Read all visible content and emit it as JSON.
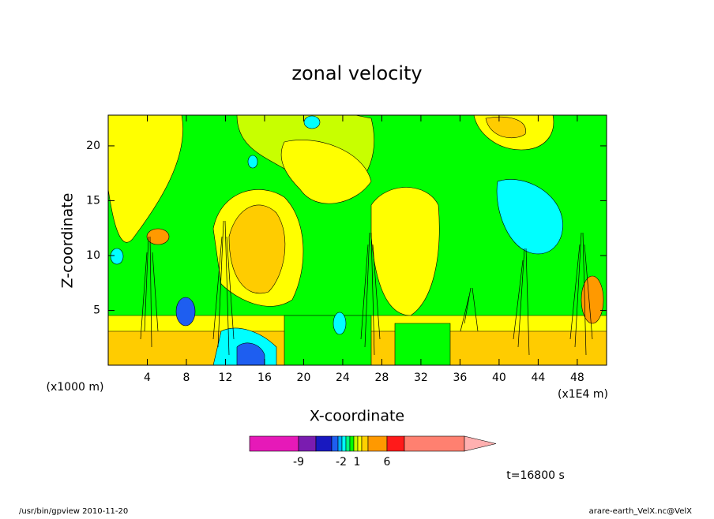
{
  "chart_data": {
    "type": "contour",
    "title": "zonal velocity",
    "x_label": "X-coordinate",
    "y_label": "Z-coordinate",
    "x_unit": "(x1E4 m)",
    "y_unit": "(x1000 m)",
    "xlim": [
      0,
      51
    ],
    "xticks": [
      4,
      8,
      12,
      16,
      20,
      24,
      28,
      32,
      36,
      40,
      44,
      48
    ],
    "ylim": [
      0,
      22.8
    ],
    "yticks": [
      5,
      10,
      15,
      20
    ],
    "colorbar": {
      "colors": [
        "#e619b8",
        "#7a1cb0",
        "#1818c0",
        "#1e5ef0",
        "#00aaff",
        "#00ffff",
        "#00ff80",
        "#00ff00",
        "#c8ff00",
        "#ffff00",
        "#ffd000",
        "#ff9900",
        "#ff1a1a",
        "#ff8070",
        "#ffb0b0"
      ],
      "ticks": [
        -9,
        -2,
        1,
        6
      ]
    },
    "time_label": "t=16800 s",
    "footer_left": "/usr/bin/gpview  2010-11-20",
    "footer_right": "arare-earth_VelX.nc@VelX"
  }
}
